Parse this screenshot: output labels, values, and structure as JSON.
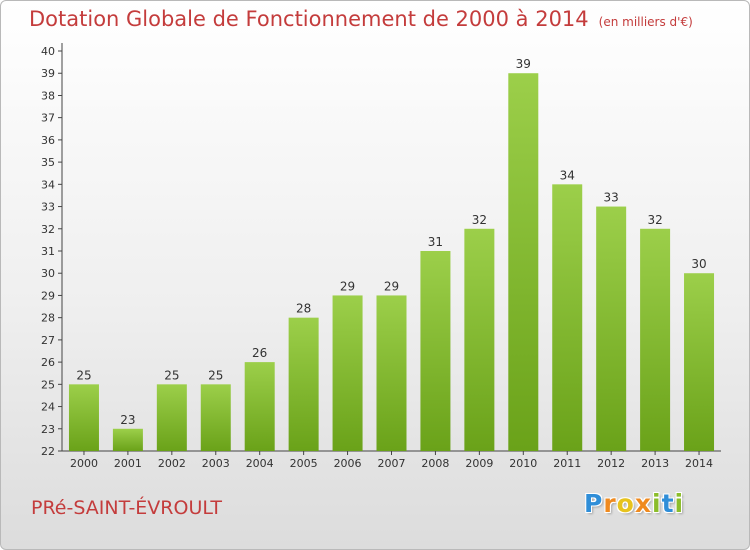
{
  "header": {
    "title": "Dotation Globale de Fonctionnement de 2000 à 2014",
    "subtitle": "(en milliers d'€)"
  },
  "footer": {
    "commune": "PRé-SAINT-ÉVROULT",
    "logo_letters": [
      "P",
      "r",
      "o",
      "x",
      "i",
      "t",
      "i"
    ]
  },
  "chart_data": {
    "type": "bar",
    "title": "Dotation Globale de Fonctionnement de 2000 à 2014",
    "subtitle": "(en milliers d'€)",
    "xlabel": "",
    "ylabel": "",
    "categories": [
      "2000",
      "2001",
      "2002",
      "2003",
      "2004",
      "2005",
      "2006",
      "2007",
      "2008",
      "2009",
      "2010",
      "2011",
      "2012",
      "2013",
      "2014"
    ],
    "values": [
      25,
      23,
      25,
      25,
      26,
      28,
      29,
      29,
      31,
      32,
      39,
      34,
      33,
      32,
      30
    ],
    "ylim": [
      22,
      40
    ],
    "yticks": [
      22,
      23,
      24,
      25,
      26,
      27,
      28,
      29,
      30,
      31,
      32,
      33,
      34,
      35,
      36,
      37,
      38,
      39,
      40
    ],
    "grid": false,
    "colors": {
      "bar_top": "#9ccf4a",
      "bar_bottom": "#6aa219",
      "text": "#333333",
      "title": "#c43c3c"
    }
  }
}
